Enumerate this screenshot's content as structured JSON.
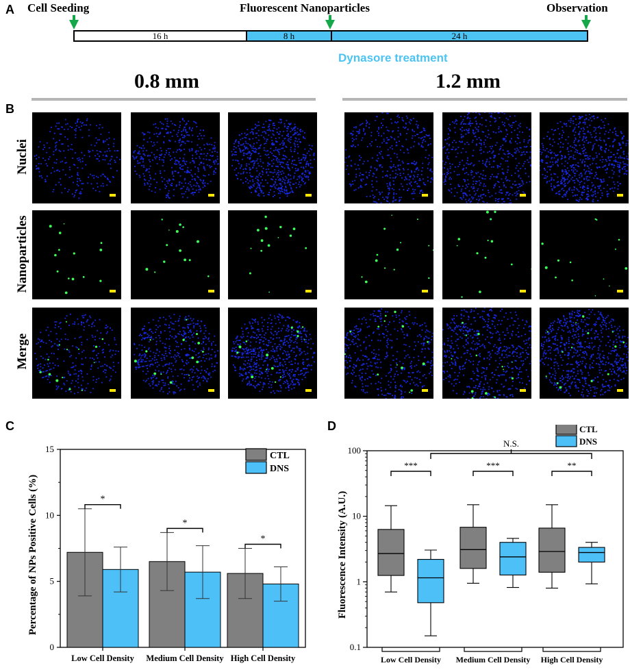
{
  "panels": {
    "a": "A",
    "b": "B",
    "c": "C",
    "d": "D"
  },
  "timeline": {
    "cell_seeding": "Cell Seeding",
    "nanoparticles": "Fluorescent Nanoparticles",
    "observation": "Observation",
    "seg1": "16 h",
    "seg2": "8 h",
    "seg3": "24 h",
    "treatment": "Dynasore treatment",
    "arrow_color": "#14a84a",
    "treatment_color": "#4cc3f2"
  },
  "microscopy": {
    "left_title": "0.8 mm",
    "right_title": "1.2 mm",
    "rows": [
      "Nuclei",
      "Nanoparticles",
      "Merge"
    ],
    "nuclei_color": "#1a2cff",
    "np_color": "#3cff5a",
    "scalebar_color": "#ffe600"
  },
  "chart_data": [
    {
      "type": "bar",
      "ylabel": "Percentage of NPs Positive Cells (%)",
      "categories": [
        "Low Cell Density",
        "Medium Cell Density",
        "High Cell Density"
      ],
      "ylim": [
        0,
        15
      ],
      "yticks": [
        "0",
        "5",
        "10",
        "15"
      ],
      "legend": [
        "CTL",
        "DNS"
      ],
      "legend_placement": "top-right",
      "colors": {
        "CTL": "#808080",
        "DNS": "#4ec0f8"
      },
      "series": [
        {
          "name": "CTL",
          "values": [
            7.2,
            6.5,
            5.6
          ],
          "error": [
            3.3,
            2.2,
            1.9
          ]
        },
        {
          "name": "DNS",
          "values": [
            5.9,
            5.7,
            4.8
          ],
          "error": [
            1.7,
            2.0,
            1.3
          ]
        }
      ],
      "significance": [
        "*",
        "*",
        "*"
      ]
    },
    {
      "type": "box",
      "ylabel": "Fluorescence Intensity (A.U.)",
      "scale": "log",
      "categories": [
        "Low Cell Density",
        "Medium Cell Density",
        "High Cell Density"
      ],
      "ylim": [
        0.1,
        100
      ],
      "yticks": [
        "0.1",
        "1",
        "10",
        "100"
      ],
      "legend": [
        "CTL",
        "DNS"
      ],
      "legend_placement": "top-right",
      "colors": {
        "CTL": "#808080",
        "DNS": "#4ec0f8"
      },
      "series": [
        {
          "name": "CTL",
          "boxes": [
            {
              "min": 0.7,
              "q1": 1.25,
              "median": 2.7,
              "q3": 6.3,
              "max": 14.5
            },
            {
              "min": 0.95,
              "q1": 1.6,
              "median": 3.1,
              "q3": 6.8,
              "max": 15.0
            },
            {
              "min": 0.8,
              "q1": 1.4,
              "median": 2.9,
              "q3": 6.6,
              "max": 15.0
            }
          ]
        },
        {
          "name": "DNS",
          "boxes": [
            {
              "min": 0.15,
              "q1": 0.48,
              "median": 1.15,
              "q3": 2.2,
              "max": 3.05
            },
            {
              "min": 0.82,
              "q1": 1.27,
              "median": 2.4,
              "q3": 4.0,
              "max": 4.6
            },
            {
              "min": 0.93,
              "q1": 2.0,
              "median": 2.8,
              "q3": 3.35,
              "max": 4.0
            }
          ]
        }
      ],
      "significance": [
        "***",
        "***",
        "**"
      ],
      "overall": "N.S."
    }
  ]
}
